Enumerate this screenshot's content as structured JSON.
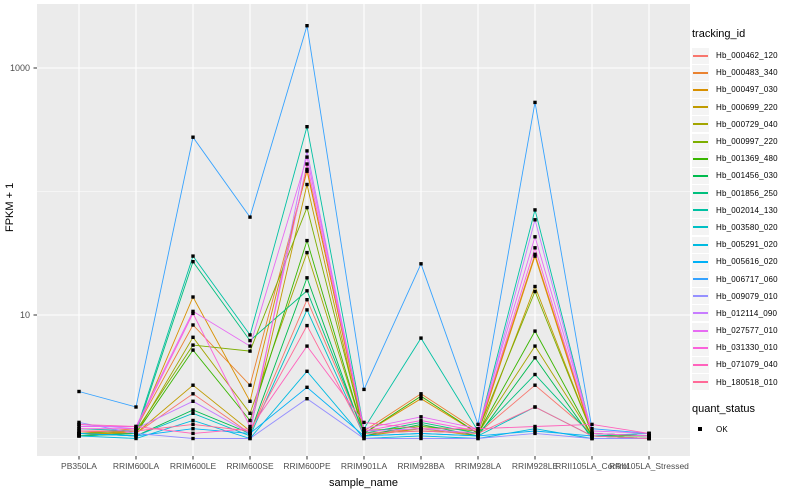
{
  "figure": {
    "background": "#FFFFFF",
    "panel_background": "#EBEBEB",
    "grid_color": "#FFFFFF",
    "tick_color": "#333333",
    "tick_label_color": "#4D4D4D",
    "axis_title_color": "#000000",
    "legend_key_background": "#F4F4F4",
    "point_color": "#000000"
  },
  "chart_data": {
    "type": "line",
    "title": "",
    "xlabel": "sample_name",
    "ylabel": "FPKM + 1",
    "y_scale": "log10",
    "y_major_ticks": [
      10,
      1000
    ],
    "y_minor_gridlines": [
      1,
      100
    ],
    "ylim": [
      0.7,
      3000
    ],
    "grid": true,
    "legend_position": "right",
    "marker": "black-square",
    "categories": [
      "PB350LA",
      "RRIM600LA",
      "RRIM600LE",
      "RRIM600SE",
      "RRIM600PE",
      "RRIM901LA",
      "RRIM928BA",
      "RRIM928LA",
      "RRIM928LE",
      "RRII105LA_Control",
      "RRII105LA_Stressed"
    ],
    "series": [
      {
        "name": "Hb_000462_120",
        "color": "#F8766D",
        "values": [
          1.15,
          1.1,
          2.3,
          1.1,
          13.3,
          1.1,
          1.2,
          1.1,
          2.7,
          1.1,
          1.05
        ]
      },
      {
        "name": "Hb_000483_340",
        "color": "#EA8331",
        "values": [
          1.1,
          1.2,
          8.3,
          2.7,
          146,
          1.15,
          2.3,
          1.15,
          31,
          1.1,
          1.05
        ]
      },
      {
        "name": "Hb_000497_030",
        "color": "#D89000",
        "values": [
          1.05,
          1.15,
          14.0,
          2.0,
          151,
          1.1,
          2.1,
          1.1,
          30,
          1.05,
          1.0
        ]
      },
      {
        "name": "Hb_000699_220",
        "color": "#C09B00",
        "values": [
          1.1,
          1.1,
          2.7,
          1.15,
          114,
          1.05,
          1.2,
          1.05,
          17,
          1.1,
          1.05
        ]
      },
      {
        "name": "Hb_000729_040",
        "color": "#A3A500",
        "values": [
          1.05,
          1.1,
          6.6,
          1.6,
          32,
          1.1,
          1.15,
          1.1,
          5.6,
          1.05,
          1.0
        ]
      },
      {
        "name": "Hb_000997_220",
        "color": "#7CAE00",
        "values": [
          1.1,
          1.15,
          5.7,
          5.1,
          74,
          1.15,
          1.25,
          1.15,
          15.5,
          1.1,
          1.05
        ]
      },
      {
        "name": "Hb_001369_480",
        "color": "#39B600",
        "values": [
          1.05,
          1.1,
          5.2,
          1.4,
          40,
          1.1,
          2.2,
          1.1,
          7.4,
          1.05,
          1.05
        ]
      },
      {
        "name": "Hb_001456_030",
        "color": "#00BB4E",
        "values": [
          1.1,
          1.05,
          1.7,
          1.1,
          20,
          1.05,
          1.3,
          1.05,
          4.5,
          1.0,
          1.0
        ]
      },
      {
        "name": "Hb_001856_250",
        "color": "#00BF7D",
        "values": [
          1.05,
          1.1,
          27.0,
          6.2,
          15.7,
          1.1,
          1.35,
          1.1,
          3.3,
          1.05,
          1.0
        ]
      },
      {
        "name": "Hb_002014_130",
        "color": "#00C1A3",
        "values": [
          1.2,
          1.15,
          30.0,
          6.9,
          335,
          1.2,
          6.5,
          1.15,
          71,
          1.1,
          1.05
        ]
      },
      {
        "name": "Hb_003580_020",
        "color": "#00BFC4",
        "values": [
          1.1,
          1.05,
          1.6,
          1.05,
          11.0,
          1.05,
          1.1,
          1.05,
          1.8,
          1.05,
          1.1
        ]
      },
      {
        "name": "Hb_005291_020",
        "color": "#00BAE0",
        "values": [
          1.05,
          1.0,
          1.4,
          1.0,
          3.5,
          1.0,
          1.05,
          1.0,
          1.2,
          1.0,
          1.0
        ]
      },
      {
        "name": "Hb_005616_020",
        "color": "#00B0F6",
        "values": [
          1.1,
          1.05,
          1.2,
          1.1,
          2.6,
          1.05,
          1.1,
          1.05,
          1.15,
          1.05,
          1.0
        ]
      },
      {
        "name": "Hb_006717_060",
        "color": "#35A2FF",
        "values": [
          2.4,
          1.8,
          275,
          62,
          2200,
          2.5,
          26,
          1.3,
          527,
          1.2,
          1.1
        ]
      },
      {
        "name": "Hb_009079_010",
        "color": "#9590FF",
        "values": [
          1.35,
          1.1,
          1.0,
          1.0,
          2.1,
          1.0,
          1.0,
          1.0,
          1.1,
          1.0,
          1.0
        ]
      },
      {
        "name": "Hb_012114_090",
        "color": "#C77CFF",
        "values": [
          1.3,
          1.2,
          2.0,
          1.1,
          213,
          1.15,
          1.2,
          1.1,
          59,
          1.1,
          1.05
        ]
      },
      {
        "name": "Hb_027577_010",
        "color": "#E76BF3",
        "values": [
          1.25,
          1.25,
          10.7,
          5.6,
          190,
          1.2,
          1.5,
          1.2,
          43,
          1.15,
          1.1
        ]
      },
      {
        "name": "Hb_031330_010",
        "color": "#FA62DB",
        "values": [
          1.2,
          1.2,
          10.3,
          1.25,
          167,
          1.15,
          1.4,
          1.15,
          35,
          1.1,
          1.05
        ]
      },
      {
        "name": "Hb_071079_040",
        "color": "#FF62BC",
        "values": [
          1.3,
          1.25,
          1.1,
          1.2,
          5.6,
          1.35,
          1.2,
          1.2,
          1.25,
          1.3,
          1.1
        ]
      },
      {
        "name": "Hb_180518_010",
        "color": "#FF6A98",
        "values": [
          1.15,
          1.15,
          1.3,
          1.15,
          8.2,
          1.1,
          1.15,
          1.1,
          1.8,
          1.05,
          1.0
        ]
      }
    ],
    "legend": {
      "title": "tracking_id"
    },
    "quant_legend": {
      "title": "quant_status",
      "items": [
        {
          "label": "OK"
        }
      ]
    }
  }
}
